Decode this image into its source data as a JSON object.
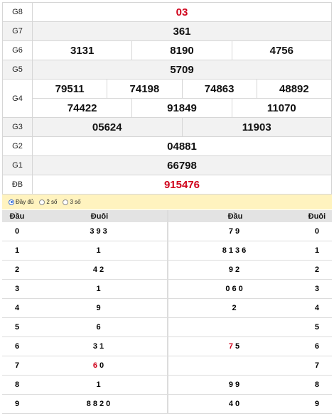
{
  "prizes": [
    {
      "label": "G8",
      "lines": [
        [
          "03"
        ]
      ],
      "red": true
    },
    {
      "label": "G7",
      "lines": [
        [
          "361"
        ]
      ]
    },
    {
      "label": "G6",
      "lines": [
        [
          "3131",
          "8190",
          "4756"
        ]
      ]
    },
    {
      "label": "G5",
      "lines": [
        [
          "5709"
        ]
      ]
    },
    {
      "label": "G4",
      "lines": [
        [
          "79511",
          "74198",
          "74863",
          "48892"
        ],
        [
          "74422",
          "91849",
          "11070"
        ]
      ]
    },
    {
      "label": "G3",
      "lines": [
        [
          "05624",
          "11903"
        ]
      ]
    },
    {
      "label": "G2",
      "lines": [
        [
          "04881"
        ]
      ]
    },
    {
      "label": "G1",
      "lines": [
        [
          "66798"
        ]
      ]
    },
    {
      "label": "ĐB",
      "lines": [
        [
          "915476"
        ]
      ],
      "red": true
    }
  ],
  "options": {
    "full": "Đầy đủ",
    "two": "2 số",
    "three": "3 số"
  },
  "dau_duoi": {
    "left_head": {
      "key": "Đầu",
      "vals": "Đuôi"
    },
    "right_head": {
      "vals": "Đầu",
      "key": "Đuôi"
    },
    "rows": [
      {
        "key": "0",
        "left": [
          {
            "t": "3"
          },
          {
            "t": "9"
          },
          {
            "t": "3"
          }
        ],
        "right": [
          {
            "t": "7"
          },
          {
            "t": "9"
          }
        ]
      },
      {
        "key": "1",
        "left": [
          {
            "t": "1"
          }
        ],
        "right": [
          {
            "t": "8"
          },
          {
            "t": "1"
          },
          {
            "t": "3"
          },
          {
            "t": "6"
          }
        ]
      },
      {
        "key": "2",
        "left": [
          {
            "t": "4"
          },
          {
            "t": "2"
          }
        ],
        "right": [
          {
            "t": "9"
          },
          {
            "t": "2"
          }
        ]
      },
      {
        "key": "3",
        "left": [
          {
            "t": "1"
          }
        ],
        "right": [
          {
            "t": "0"
          },
          {
            "t": "6"
          },
          {
            "t": "0"
          }
        ]
      },
      {
        "key": "4",
        "left": [
          {
            "t": "9"
          }
        ],
        "right": [
          {
            "t": "2"
          }
        ]
      },
      {
        "key": "5",
        "left": [
          {
            "t": "6"
          }
        ],
        "right": []
      },
      {
        "key": "6",
        "left": [
          {
            "t": "3"
          },
          {
            "t": "1"
          }
        ],
        "right": [
          {
            "t": "7",
            "red": true
          },
          {
            "t": "5"
          }
        ]
      },
      {
        "key": "7",
        "left": [
          {
            "t": "6",
            "red": true
          },
          {
            "t": "0"
          }
        ],
        "right": []
      },
      {
        "key": "8",
        "left": [
          {
            "t": "1"
          }
        ],
        "right": [
          {
            "t": "9"
          },
          {
            "t": "9"
          }
        ]
      },
      {
        "key": "9",
        "left": [
          {
            "t": "8"
          },
          {
            "t": "8"
          },
          {
            "t": "2"
          },
          {
            "t": "0"
          }
        ],
        "right": [
          {
            "t": "4"
          },
          {
            "t": "0"
          }
        ]
      }
    ]
  },
  "colors": {
    "accent_red": "#d0021b",
    "options_bg": "#fff3bf",
    "row_alt": "#f2f2f2"
  }
}
